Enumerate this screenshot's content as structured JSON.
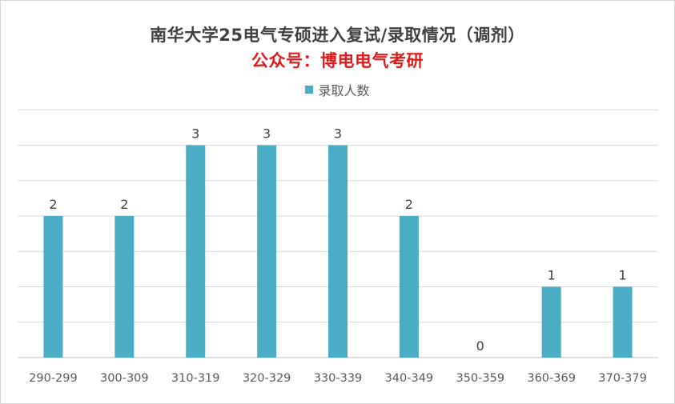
{
  "chart_data": {
    "type": "bar",
    "title": "南华大学25电气专硕进入复试/录取情况（调剂）",
    "subtitle": "公众号：博电电气考研",
    "categories": [
      "290-299",
      "300-309",
      "310-319",
      "320-329",
      "330-339",
      "340-349",
      "350-359",
      "360-369",
      "370-379"
    ],
    "series": [
      {
        "name": "录取人数",
        "values": [
          2,
          2,
          3,
          3,
          3,
          2,
          0,
          1,
          1
        ],
        "color": "#4bacc6"
      }
    ],
    "xlabel": "",
    "ylabel": "",
    "ylim": [
      0,
      3.5
    ],
    "grid": true,
    "legend": "top"
  }
}
